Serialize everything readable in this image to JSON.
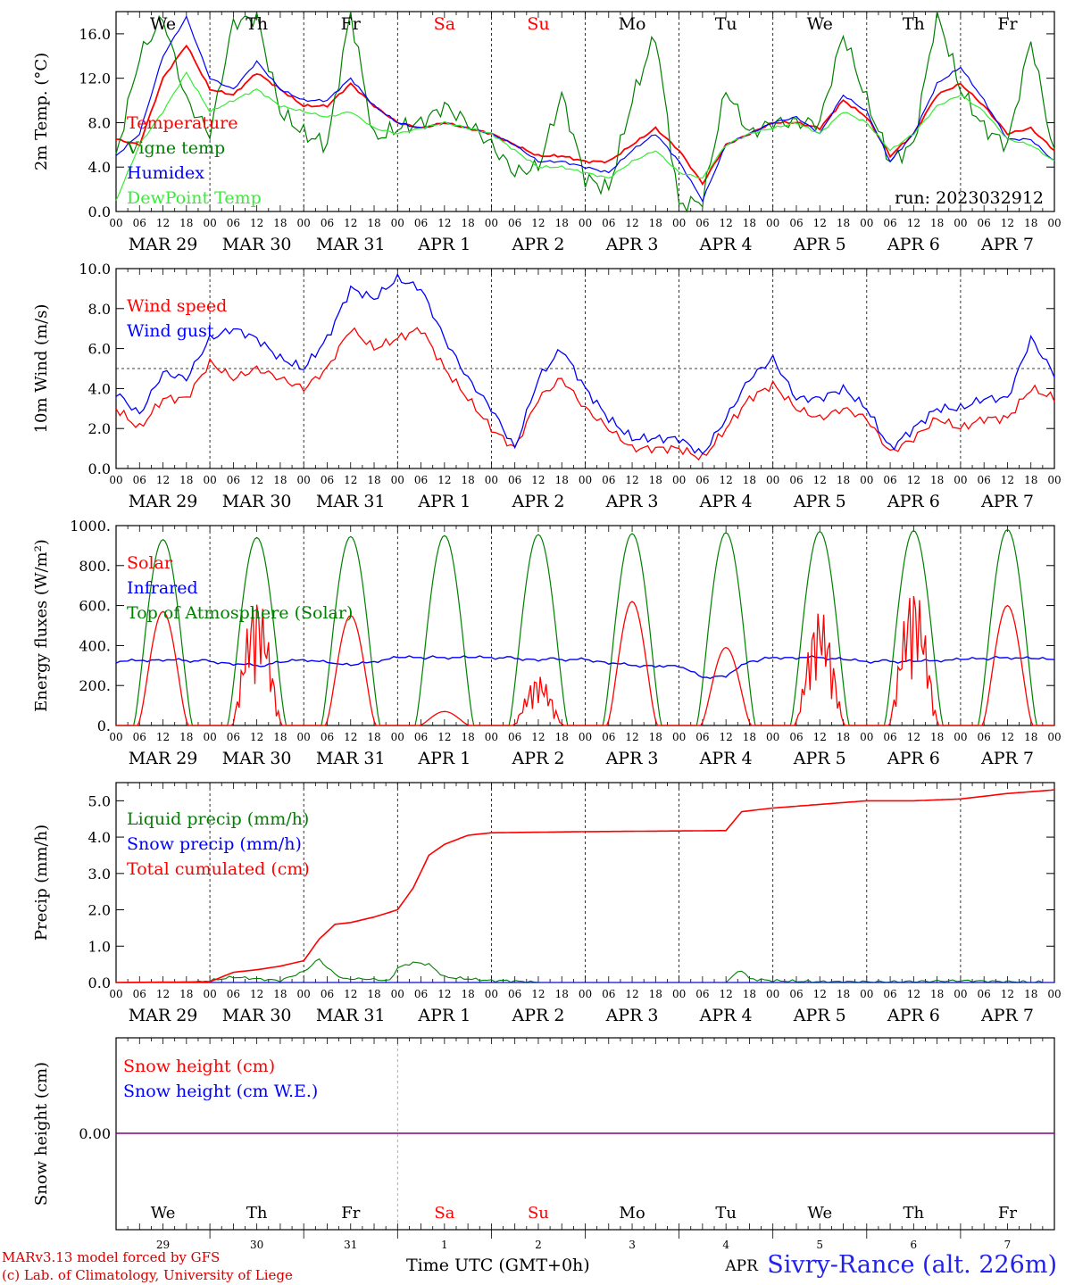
{
  "title": "Sivry-Rance (alt. 226m)",
  "credits": [
    "MARv3.13 model forced by GFS",
    "(c) Lab. of Climatology, University of Liege"
  ],
  "time_axis_label": "Time UTC (GMT+0h)",
  "hour_ticks": [
    "00",
    "06",
    "12",
    "18"
  ],
  "date_labels": [
    "MAR 29",
    "MAR 30",
    "MAR 31",
    "APR  1",
    "APR  2",
    "APR  3",
    "APR  4",
    "APR  5",
    "APR  6",
    "APR  7"
  ],
  "weekdays": [
    "We",
    "Th",
    "Fr",
    "Sa",
    "Su",
    "Mo",
    "Tu",
    "We",
    "Th",
    "Fr"
  ],
  "weekend_days": [
    "Sa",
    "Su"
  ],
  "day_numbers": [
    "29",
    "30",
    "31",
    "1",
    "2",
    "3",
    "4",
    "5",
    "6",
    "7"
  ],
  "month_label": "APR",
  "colors": {
    "red": "#ff0000",
    "green": "#008000",
    "blue": "#0000ff",
    "lightgreen": "#33ee33",
    "purple": "#800080",
    "weekend": "#ff0000"
  },
  "chart_data": [
    {
      "type": "line",
      "ylabel": "2m Temp. (°C)",
      "ylim": [
        0,
        18
      ],
      "yticks": [
        "0.0",
        "4.0",
        "8.0",
        "12.0",
        "16.0"
      ],
      "annotation": "run: 2023032912",
      "x_unit": "hours since MAR 29 00 UTC",
      "x": [
        0,
        6,
        12,
        18,
        24,
        30,
        36,
        42,
        48,
        54,
        60,
        66,
        72,
        78,
        84,
        90,
        96,
        102,
        108,
        114,
        120,
        126,
        132,
        138,
        144,
        150,
        156,
        162,
        168,
        174,
        180,
        186,
        192,
        198,
        204,
        210,
        216,
        222,
        228,
        234,
        240
      ],
      "series": [
        {
          "name": "Temperature",
          "color": "#ff0000",
          "values": [
            6.5,
            6.0,
            12.0,
            15.0,
            11.0,
            10.5,
            12.5,
            11.0,
            9.5,
            9.5,
            11.5,
            9.5,
            8.0,
            7.5,
            8.0,
            7.5,
            7.0,
            6.0,
            5.0,
            5.0,
            4.5,
            4.5,
            6.0,
            7.5,
            5.5,
            2.5,
            6.0,
            7.0,
            8.0,
            8.0,
            7.5,
            10.0,
            8.5,
            5.0,
            7.0,
            10.5,
            11.5,
            9.5,
            7.0,
            7.5,
            5.5
          ]
        },
        {
          "name": "Vigne temp",
          "color": "#008000",
          "values": [
            5.0,
            14.0,
            17.5,
            10.0,
            7.0,
            17.0,
            17.5,
            9.0,
            7.0,
            6.0,
            18.0,
            6.5,
            7.5,
            8.0,
            9.5,
            8.0,
            6.0,
            3.5,
            4.0,
            10.5,
            3.0,
            2.0,
            10.0,
            16.0,
            0.5,
            1.0,
            11.0,
            7.0,
            8.0,
            8.0,
            8.0,
            16.0,
            10.0,
            4.5,
            6.0,
            18.0,
            11.0,
            7.5,
            6.0,
            15.5,
            5.0
          ]
        },
        {
          "name": "Humidex",
          "color": "#0000ff",
          "values": [
            5.0,
            7.0,
            14.0,
            17.5,
            12.0,
            11.0,
            13.5,
            11.0,
            10.0,
            10.0,
            12.0,
            9.5,
            8.0,
            7.5,
            8.0,
            7.5,
            7.0,
            6.0,
            4.5,
            4.5,
            4.0,
            3.5,
            5.5,
            7.0,
            4.5,
            1.0,
            6.0,
            7.0,
            8.0,
            8.5,
            7.0,
            10.5,
            9.0,
            4.5,
            7.0,
            11.5,
            13.0,
            10.0,
            6.5,
            6.5,
            4.5
          ]
        },
        {
          "name": "DewPoint Temp",
          "color": "#33ee33",
          "values": [
            1.0,
            6.0,
            9.0,
            12.5,
            9.0,
            10.0,
            11.0,
            9.5,
            9.0,
            8.5,
            9.0,
            7.5,
            7.0,
            7.5,
            8.0,
            7.5,
            7.0,
            5.5,
            4.0,
            4.0,
            3.5,
            3.0,
            4.5,
            5.5,
            3.5,
            3.0,
            6.0,
            7.0,
            7.5,
            8.0,
            7.0,
            9.0,
            8.0,
            5.5,
            7.0,
            9.5,
            10.5,
            9.0,
            6.5,
            6.0,
            4.5
          ]
        }
      ]
    },
    {
      "type": "line",
      "ylabel": "10m Wind (m/s)",
      "ylim": [
        0,
        10
      ],
      "yticks": [
        "0.0",
        "2.0",
        "4.0",
        "6.0",
        "8.0",
        "10.0"
      ],
      "reference_line": 5.0,
      "x_unit": "hours since MAR 29 00 UTC",
      "x": [
        0,
        6,
        12,
        18,
        24,
        30,
        36,
        42,
        48,
        54,
        60,
        66,
        72,
        78,
        84,
        90,
        96,
        102,
        108,
        114,
        120,
        126,
        132,
        138,
        144,
        150,
        156,
        162,
        168,
        174,
        180,
        186,
        192,
        198,
        204,
        210,
        216,
        222,
        228,
        234,
        240
      ],
      "series": [
        {
          "name": "Wind speed",
          "color": "#ff0000",
          "values": [
            3.0,
            2.0,
            3.5,
            3.5,
            5.3,
            4.5,
            5.0,
            4.5,
            4.0,
            5.0,
            7.0,
            6.0,
            6.5,
            7.0,
            5.0,
            3.5,
            2.0,
            1.0,
            3.5,
            4.5,
            3.0,
            2.0,
            1.0,
            1.0,
            1.0,
            0.5,
            2.0,
            3.5,
            4.2,
            3.0,
            2.5,
            3.0,
            2.5,
            0.8,
            1.5,
            2.5,
            2.0,
            2.5,
            2.5,
            4.0,
            3.5
          ]
        },
        {
          "name": "Wind gust",
          "color": "#0000ff",
          "values": [
            3.8,
            2.7,
            4.8,
            4.5,
            6.5,
            7.0,
            6.5,
            5.5,
            5.0,
            6.5,
            9.0,
            8.5,
            9.5,
            9.0,
            6.5,
            4.5,
            3.0,
            1.0,
            4.5,
            6.0,
            4.0,
            2.5,
            1.5,
            1.5,
            1.5,
            0.7,
            2.5,
            4.5,
            5.5,
            3.5,
            3.5,
            4.0,
            3.0,
            1.0,
            2.0,
            3.0,
            3.0,
            3.5,
            3.5,
            6.5,
            4.7
          ]
        }
      ]
    },
    {
      "type": "line",
      "ylabel": "Energy fluxes (W/m²)",
      "ylim": [
        0,
        1000
      ],
      "yticks": [
        "0.",
        "200.",
        "400.",
        "600.",
        "800.",
        "1000."
      ],
      "x_unit": "hours since MAR 29 00 UTC",
      "solar_window_hours": [
        4.5,
        19.5
      ],
      "series": [
        {
          "name": "Solar",
          "color": "#ff0000",
          "daily_peak": [
            570,
            650,
            550,
            70,
            250,
            620,
            390,
            580,
            700,
            600
          ]
        },
        {
          "name": "Infrared",
          "color": "#0000ff",
          "x": [
            0,
            12,
            24,
            36,
            48,
            60,
            72,
            84,
            96,
            108,
            120,
            132,
            144,
            150,
            156,
            162,
            168,
            180,
            192,
            204,
            216,
            228,
            240
          ],
          "values": [
            320,
            330,
            320,
            300,
            330,
            300,
            340,
            340,
            340,
            330,
            330,
            300,
            300,
            240,
            250,
            320,
            340,
            340,
            320,
            320,
            330,
            340,
            330
          ]
        },
        {
          "name": "Top of Atmosphere (Solar)",
          "color": "#008000",
          "daily_peak": [
            930,
            940,
            945,
            950,
            955,
            960,
            965,
            970,
            975,
            980
          ]
        }
      ]
    },
    {
      "type": "line",
      "ylabel": "Precip (mm/h)",
      "ylim": [
        0,
        5.5
      ],
      "yticks": [
        "0.0",
        "1.0",
        "2.0",
        "3.0",
        "4.0",
        "5.0"
      ],
      "x_unit": "hours since MAR 29 00 UTC",
      "series": [
        {
          "name": "Liquid precip (mm/h)",
          "color": "#008000",
          "x": [
            0,
            20,
            24,
            30,
            36,
            42,
            48,
            52,
            54,
            58,
            64,
            70,
            72,
            76,
            80,
            84,
            90,
            96,
            100,
            108,
            114,
            144,
            156,
            158,
            160,
            162,
            168,
            180,
            200,
            216,
            240
          ],
          "values": [
            0,
            0,
            0.05,
            0.15,
            0.1,
            0.05,
            0.3,
            0.65,
            0.4,
            0.1,
            0.1,
            0.05,
            0.4,
            0.55,
            0.5,
            0.15,
            0.1,
            0.05,
            0.05,
            0,
            0,
            0,
            0,
            0.2,
            0.35,
            0.1,
            0.05,
            0.02,
            0.02,
            0.05,
            0
          ]
        },
        {
          "name": "Snow precip (mm/h)",
          "color": "#0000ff",
          "x": [
            0,
            240
          ],
          "values": [
            0,
            0
          ]
        },
        {
          "name": "Total cumulated (cm)",
          "color": "#ff0000",
          "x": [
            0,
            24,
            30,
            36,
            42,
            48,
            52,
            56,
            60,
            66,
            72,
            76,
            80,
            84,
            90,
            96,
            120,
            156,
            160,
            168,
            180,
            192,
            204,
            216,
            228,
            240
          ],
          "values": [
            0,
            0.02,
            0.28,
            0.35,
            0.45,
            0.6,
            1.2,
            1.6,
            1.65,
            1.8,
            2.0,
            2.6,
            3.5,
            3.8,
            4.05,
            4.12,
            4.15,
            4.18,
            4.7,
            4.8,
            4.9,
            5.0,
            5.0,
            5.05,
            5.2,
            5.3
          ]
        }
      ]
    },
    {
      "type": "line",
      "ylabel": "Snow height (cm)",
      "ytick": "0.00",
      "x_unit": "hours since MAR 29 00 UTC",
      "series": [
        {
          "name": "Snow height (cm)",
          "color": "#ff0000",
          "x": [
            0,
            240
          ],
          "values": [
            0,
            0
          ]
        },
        {
          "name": "Snow height (cm W.E.)",
          "color": "#0000ff",
          "x": [
            0,
            240
          ],
          "values": [
            0,
            0
          ]
        }
      ]
    }
  ]
}
